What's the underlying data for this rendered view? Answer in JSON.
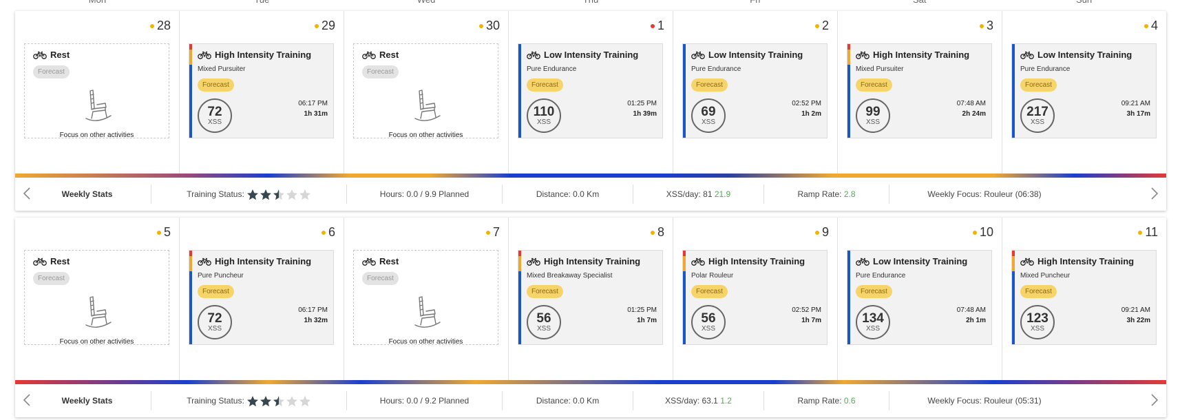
{
  "day_headers": [
    "Mon",
    "Tue",
    "Wed",
    "Thu",
    "Fri",
    "Sat",
    "Sun"
  ],
  "weeks": [
    {
      "days": [
        {
          "num": "28",
          "dot_color": "#f0b400",
          "type": "rest",
          "title": "Rest",
          "badge": "Forecast",
          "focus_text": "Focus on other activities"
        },
        {
          "num": "29",
          "dot_color": "#f0b400",
          "type": "workout",
          "title": "High Intensity Training",
          "subtitle": "Mixed Pursuiter",
          "badge": "Forecast",
          "xss": "72",
          "xss_unit": "XSS",
          "time": "06:17 PM",
          "duration": "1h 31m",
          "stripe": "hit"
        },
        {
          "num": "30",
          "dot_color": "#f0b400",
          "type": "rest",
          "title": "Rest",
          "badge": "Forecast",
          "focus_text": "Focus on other activities"
        },
        {
          "num": "1",
          "dot_color": "#e53935",
          "type": "workout",
          "title": "Low Intensity Training",
          "subtitle": "Pure Endurance",
          "badge": "Forecast",
          "xss": "110",
          "xss_unit": "XSS",
          "time": "01:25 PM",
          "duration": "1h 39m",
          "stripe": "lit"
        },
        {
          "num": "2",
          "dot_color": "#f0b400",
          "type": "workout",
          "title": "Low Intensity Training",
          "subtitle": "Pure Endurance",
          "badge": "Forecast",
          "xss": "69",
          "xss_unit": "XSS",
          "time": "02:52 PM",
          "duration": "1h 2m",
          "stripe": "lit"
        },
        {
          "num": "3",
          "dot_color": "#f0b400",
          "type": "workout",
          "title": "High Intensity Training",
          "subtitle": "Mixed Pursuiter",
          "badge": "Forecast",
          "xss": "99",
          "xss_unit": "XSS",
          "time": "07:48 AM",
          "duration": "2h 24m",
          "stripe": "hit"
        },
        {
          "num": "4",
          "dot_color": "#f0b400",
          "type": "workout",
          "title": "Low Intensity Training",
          "subtitle": "Pure Endurance",
          "badge": "Forecast",
          "xss": "217",
          "xss_unit": "XSS",
          "time": "09:21 AM",
          "duration": "3h 17m",
          "stripe": "lit"
        }
      ],
      "stats": {
        "label": "Weekly Stats",
        "training_status_label": "Training Status:",
        "training_status_stars": 2.5,
        "hours": "Hours: 0.0 / 9.9 Planned",
        "distance": "Distance: 0.0 Km",
        "xss_day_label": "XSS/day: 81",
        "xss_day_delta": "21.9",
        "ramp_label": "Ramp Rate:",
        "ramp_value": "2.8",
        "focus": "Weekly Focus: Rouleur (06:38)"
      }
    },
    {
      "days": [
        {
          "num": "5",
          "dot_color": "#f0b400",
          "type": "rest",
          "title": "Rest",
          "badge": "Forecast",
          "focus_text": "Focus on other activities"
        },
        {
          "num": "6",
          "dot_color": "#f0b400",
          "type": "workout",
          "title": "High Intensity Training",
          "subtitle": "Pure Puncheur",
          "badge": "Forecast",
          "xss": "72",
          "xss_unit": "XSS",
          "time": "06:17 PM",
          "duration": "1h 32m",
          "stripe": "hit"
        },
        {
          "num": "7",
          "dot_color": "#f0b400",
          "type": "rest",
          "title": "Rest",
          "badge": "Forecast",
          "focus_text": "Focus on other activities"
        },
        {
          "num": "8",
          "dot_color": "#f0b400",
          "type": "workout",
          "title": "High Intensity Training",
          "subtitle": "Mixed Breakaway Specialist",
          "badge": "Forecast",
          "xss": "56",
          "xss_unit": "XSS",
          "time": "01:25 PM",
          "duration": "1h 7m",
          "stripe": "hit"
        },
        {
          "num": "9",
          "dot_color": "#f0b400",
          "type": "workout",
          "title": "High Intensity Training",
          "subtitle": "Polar Rouleur",
          "badge": "Forecast",
          "xss": "56",
          "xss_unit": "XSS",
          "time": "02:52 PM",
          "duration": "1h 7m",
          "stripe": "hit"
        },
        {
          "num": "10",
          "dot_color": "#f0b400",
          "type": "workout",
          "title": "Low Intensity Training",
          "subtitle": "Pure Endurance",
          "badge": "Forecast",
          "xss": "134",
          "xss_unit": "XSS",
          "time": "07:48 AM",
          "duration": "2h 1m",
          "stripe": "lit"
        },
        {
          "num": "11",
          "dot_color": "#f0b400",
          "type": "workout",
          "title": "High Intensity Training",
          "subtitle": "Mixed Puncheur",
          "badge": "Forecast",
          "xss": "123",
          "xss_unit": "XSS",
          "time": "09:21 AM",
          "duration": "3h 22m",
          "stripe": "hit"
        }
      ],
      "stats": {
        "label": "Weekly Stats",
        "training_status_label": "Training Status:",
        "training_status_stars": 2.5,
        "hours": "Hours: 0.0 / 9.2 Planned",
        "distance": "Distance: 0.0 Km",
        "xss_day_label": "XSS/day: 63.1",
        "xss_day_delta": "1.2",
        "ramp_label": "Ramp Rate:",
        "ramp_value": "0.6",
        "focus": "Weekly Focus: Rouleur (05:31)"
      }
    }
  ],
  "colors": {
    "accent_yellow": "#f0b400",
    "alert_red": "#e53935",
    "stripe_blue": "#1a56c4",
    "stripe_red": "#e53935",
    "stripe_orange": "#f0a830",
    "forecast_yellow": "#f7d46a",
    "positive_green": "#4caf50"
  },
  "icons": [
    "bicycle-icon",
    "rocking-chair-icon",
    "star-icon",
    "chevron-left-icon",
    "chevron-right-icon"
  ]
}
